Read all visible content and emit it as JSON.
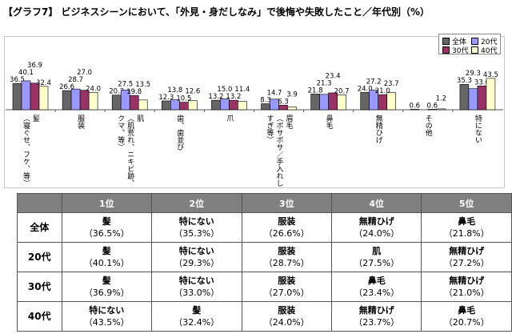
{
  "title": "【グラフ7】 ビジネスシーンにおいて、「外見・身だしなみ」で後悔や失敗したこと／年代別（%）",
  "chart_data": {
    "type": "bar",
    "title": "【グラフ7】 ビジネスシーンにおいて、「外見・身だしなみ」で後悔や失敗したこと／年代別（%）",
    "categories": [
      {
        "label": "髪",
        "sub": "（寝ぐせ、フケ、等）"
      },
      {
        "label": "服装",
        "sub": ""
      },
      {
        "label": "肌",
        "sub": "（肌荒れ、ニキビ跡、クマ、等）"
      },
      {
        "label": "歯、歯並び",
        "sub": ""
      },
      {
        "label": "爪",
        "sub": ""
      },
      {
        "label": "眉毛",
        "sub": "（ボサボサ／手入れしすぎ等）"
      },
      {
        "label": "鼻毛",
        "sub": ""
      },
      {
        "label": "無精ひげ",
        "sub": ""
      },
      {
        "label": "その他",
        "sub": ""
      },
      {
        "label": "特にない",
        "sub": ""
      }
    ],
    "series": [
      {
        "name": "全体",
        "color": "#666666",
        "values": [
          36.5,
          26.6,
          20.3,
          12.3,
          13.2,
          8.3,
          21.8,
          24.0,
          0.6,
          35.3
        ]
      },
      {
        "name": "20代",
        "color": "#9999ff",
        "values": [
          40.1,
          28.7,
          27.5,
          13.8,
          15.0,
          14.7,
          21.3,
          27.2,
          0.0,
          29.3
        ]
      },
      {
        "name": "30代",
        "color": "#993366",
        "values": [
          36.9,
          27.0,
          19.8,
          10.5,
          13.2,
          6.3,
          23.4,
          21.0,
          0.6,
          33.0
        ]
      },
      {
        "name": "40代",
        "color": "#ffffcc",
        "values": [
          32.4,
          24.0,
          13.5,
          12.6,
          11.4,
          3.9,
          20.7,
          23.7,
          1.2,
          43.5
        ]
      }
    ],
    "legend": "top-right",
    "ylim": [
      0,
      100
    ],
    "grid": false
  },
  "table": {
    "headers": [
      "",
      "1位",
      "2位",
      "3位",
      "4位",
      "5位"
    ],
    "rows": [
      {
        "group": "全体",
        "cells": [
          [
            "髪",
            "（36.5%）"
          ],
          [
            "特にない",
            "（35.3%）"
          ],
          [
            "服装",
            "（26.6%）"
          ],
          [
            "無精ひげ",
            "（24.0%）"
          ],
          [
            "鼻毛",
            "（21.8%）"
          ]
        ]
      },
      {
        "group": "20代",
        "cells": [
          [
            "髪",
            "（40.1%）"
          ],
          [
            "特にない",
            "（29.3%）"
          ],
          [
            "服装",
            "（28.7%）"
          ],
          [
            "肌",
            "（27.5%）"
          ],
          [
            "無精ひげ",
            "（27.2%）"
          ]
        ]
      },
      {
        "group": "30代",
        "cells": [
          [
            "髪",
            "（36.9%）"
          ],
          [
            "特にない",
            "（33.0%）"
          ],
          [
            "服装",
            "（27.0%）"
          ],
          [
            "鼻毛",
            "（23.4%）"
          ],
          [
            "無精ひげ",
            "（21.0%）"
          ]
        ]
      },
      {
        "group": "40代",
        "cells": [
          [
            "特にない",
            "（43.5%）"
          ],
          [
            "髪",
            "（32.4%）"
          ],
          [
            "服装",
            "（24.0%）"
          ],
          [
            "無精ひげ",
            "（23.7%）"
          ],
          [
            "鼻毛",
            "（20.7%）"
          ]
        ]
      }
    ]
  }
}
